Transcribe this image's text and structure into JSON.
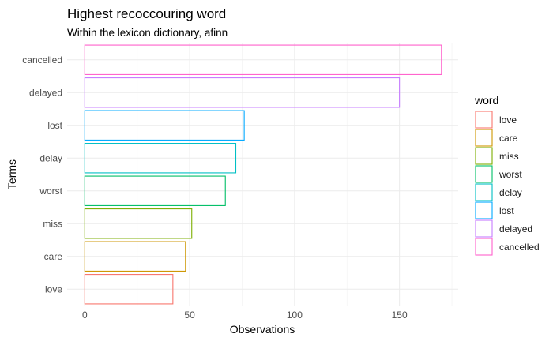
{
  "chart_data": {
    "type": "bar",
    "orientation": "horizontal",
    "title": "Highest recoccouring word",
    "subtitle": "Within the lexicon dictionary, afinn",
    "xlabel": "Observations",
    "ylabel": "Terms",
    "xlim": [
      0,
      178
    ],
    "xticks": [
      0,
      50,
      100,
      150
    ],
    "grid": true,
    "legend": {
      "title": "word",
      "placement": "right"
    },
    "fill": "none",
    "categories": [
      "love",
      "care",
      "miss",
      "worst",
      "delay",
      "lost",
      "delayed",
      "cancelled"
    ],
    "values": [
      42,
      48,
      51,
      67,
      72,
      76,
      150,
      170
    ],
    "colors": [
      "#F8766D",
      "#CD9600",
      "#7CAE00",
      "#00BE67",
      "#00BFC4",
      "#00A9FF",
      "#C77CFF",
      "#FF61CC"
    ]
  }
}
